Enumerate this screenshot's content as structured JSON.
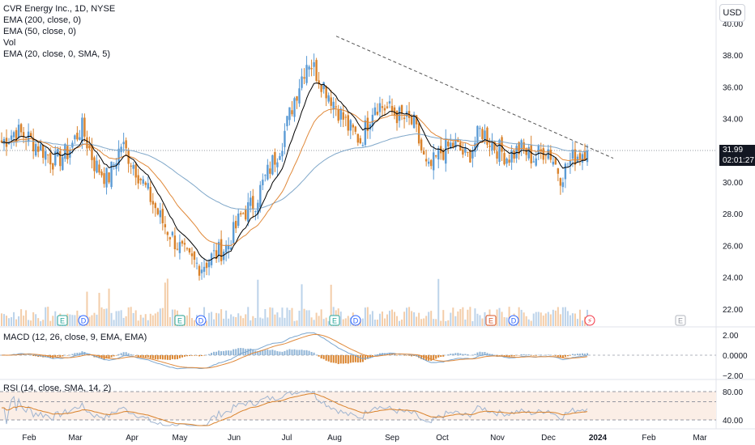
{
  "header": {
    "title": "CVR Energy Inc., 1D, NYSE",
    "indicators": [
      "EMA (200, close, 0)",
      "EMA (50, close, 0)",
      "Vol",
      "EMA (20, close, 0, SMA, 5)"
    ],
    "currency_button": "USD"
  },
  "price_tag": {
    "price": "31.99",
    "countdown": "02:01:27"
  },
  "panes": {
    "macd_label": "MACD (12, 26, close, 9, EMA, EMA)",
    "rsi_label": "RSI (14, close, SMA, 14, 2)"
  },
  "colors": {
    "up": "#5b9bd5",
    "down": "#d9822b",
    "ema200": "#7fa7c9",
    "ema50": "#e0893a",
    "ema20": "#000000",
    "macd": "#7ba6cf",
    "signal": "#e08a3c",
    "rsi": "#9fb4d0",
    "rsi_ma": "#d9822b",
    "trend": "#555555"
  },
  "chart_data": {
    "type": "candlestick",
    "title": "CVR Energy Inc., 1D, NYSE",
    "x_tick_labels": [
      "Feb",
      "Mar",
      "Apr",
      "May",
      "Jun",
      "Jul",
      "Aug",
      "Sep",
      "Oct",
      "Nov",
      "Dec",
      "2024",
      "Feb",
      "Mar"
    ],
    "price_axis": {
      "ticks": [
        "40.00",
        "38.00",
        "36.00",
        "34.00",
        "32.00",
        "30.00",
        "28.00",
        "26.00",
        "24.00",
        "22.00"
      ],
      "range": [
        21,
        40.8
      ]
    },
    "macd_axis": {
      "ticks": [
        "2.00",
        "0.0000",
        "−2.00"
      ],
      "range": [
        -2.2,
        2.2
      ]
    },
    "rsi_axis": {
      "ticks": [
        "80.00",
        "40.00"
      ],
      "range": [
        25,
        85
      ]
    },
    "last_price": 31.99,
    "weekly_close": [
      32.5,
      33.2,
      32.8,
      32.1,
      31.3,
      31.9,
      33.5,
      31.1,
      30.2,
      32.4,
      31.0,
      29.3,
      27.6,
      26.3,
      25.1,
      24.7,
      25.4,
      26.0,
      27.9,
      28.7,
      30.6,
      32.4,
      35.3,
      37.8,
      36.4,
      35.0,
      33.5,
      32.6,
      35.0,
      34.6,
      34.1,
      33.6,
      30.6,
      31.9,
      32.4,
      31.5,
      33.3,
      32.3,
      31.6,
      32.1,
      31.5,
      32.2,
      30.4,
      31.6,
      32.1
    ],
    "events": [
      {
        "label": "E",
        "date": "Feb"
      },
      {
        "label": "D",
        "date": "Feb"
      },
      {
        "label": "E",
        "date": "May"
      },
      {
        "label": "D",
        "date": "May"
      },
      {
        "label": "E",
        "date": "Jul"
      },
      {
        "label": "D",
        "date": "Aug"
      },
      {
        "label": "E",
        "date": "Oct"
      },
      {
        "label": "D",
        "date": "Oct"
      },
      {
        "label": "E",
        "date": "Feb 2024"
      }
    ],
    "trendline": {
      "from": [
        "Jul",
        39.2
      ],
      "to": [
        "Dec",
        31.6
      ]
    }
  }
}
